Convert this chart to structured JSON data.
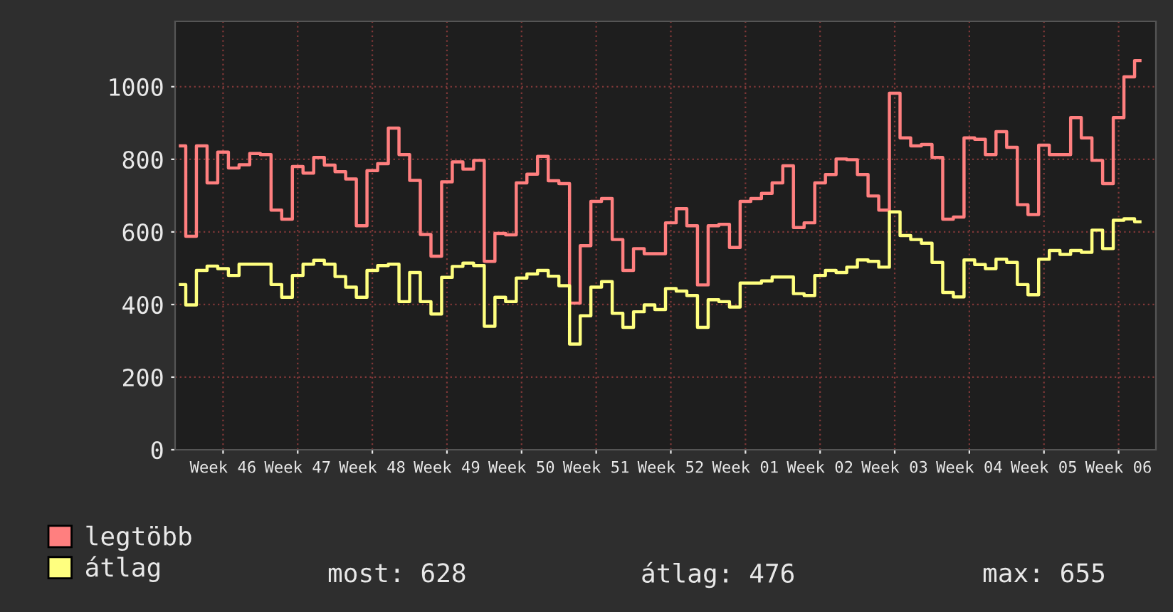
{
  "chart_data": {
    "type": "step",
    "categories": [
      null,
      null,
      null,
      null,
      "Week 46",
      null,
      null,
      null,
      null,
      null,
      null,
      "Week 47",
      null,
      null,
      null,
      null,
      null,
      null,
      "Week 48",
      null,
      null,
      null,
      null,
      null,
      null,
      "Week 49",
      null,
      null,
      null,
      null,
      null,
      null,
      "Week 50",
      null,
      null,
      null,
      null,
      null,
      null,
      "Week 51",
      null,
      null,
      null,
      null,
      null,
      null,
      "Week 52",
      null,
      null,
      null,
      null,
      null,
      null,
      "Week 01",
      null,
      null,
      null,
      null,
      null,
      null,
      "Week 02",
      null,
      null,
      null,
      null,
      null,
      null,
      "Week 03",
      null,
      null,
      null,
      null,
      null,
      null,
      "Week 04",
      null,
      null,
      null,
      null,
      null,
      null,
      "Week 05",
      null,
      null,
      null,
      null,
      null,
      null,
      "Week 06",
      null,
      null
    ],
    "series": [
      {
        "name": "legtöbb",
        "color": "#ff7f7f",
        "values": [
          837,
          588,
          837,
          735,
          820,
          776,
          785,
          816,
          813,
          660,
          635,
          780,
          762,
          805,
          784,
          766,
          746,
          617,
          769,
          788,
          886,
          813,
          742,
          593,
          533,
          738,
          793,
          773,
          797,
          519,
          596,
          592,
          735,
          759,
          808,
          741,
          733,
          404,
          562,
          684,
          692,
          579,
          494,
          554,
          540,
          540,
          625,
          664,
          617,
          454,
          617,
          621,
          557,
          684,
          692,
          706,
          735,
          782,
          612,
          625,
          735,
          758,
          801,
          799,
          758,
          699,
          660,
          982,
          859,
          837,
          841,
          805,
          635,
          641,
          859,
          855,
          813,
          876,
          833,
          675,
          648,
          839,
          813,
          813,
          915,
          859,
          797,
          733,
          915,
          1027,
          1072
        ]
      },
      {
        "name": "átlag",
        "color": "#ffff7f",
        "values": [
          455,
          399,
          494,
          506,
          499,
          480,
          511,
          511,
          511,
          455,
          420,
          480,
          511,
          522,
          511,
          477,
          448,
          420,
          494,
          507,
          511,
          408,
          488,
          408,
          374,
          475,
          505,
          514,
          507,
          340,
          420,
          408,
          473,
          484,
          494,
          478,
          452,
          291,
          369,
          448,
          463,
          376,
          337,
          380,
          399,
          386,
          444,
          437,
          425,
          337,
          413,
          408,
          393,
          459,
          459,
          465,
          476,
          476,
          430,
          425,
          480,
          494,
          488,
          503,
          523,
          519,
          503,
          655,
          590,
          579,
          569,
          516,
          433,
          421,
          523,
          510,
          499,
          525,
          516,
          455,
          427,
          525,
          549,
          538,
          549,
          544,
          605,
          554,
          632,
          636,
          628
        ]
      }
    ],
    "ylim": [
      0,
      1180
    ],
    "yticks": [
      0,
      200,
      400,
      600,
      800,
      1000
    ],
    "grid": true,
    "legend": "bottom",
    "annotations": [
      "most: 628",
      "átlag: 476",
      "max: 655"
    ]
  }
}
